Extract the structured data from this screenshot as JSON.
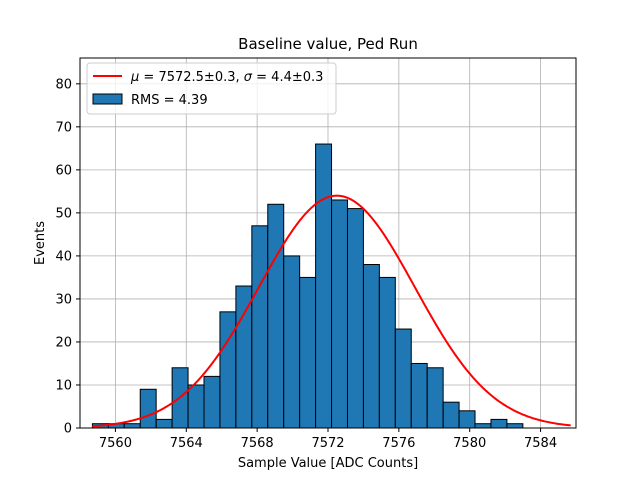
{
  "chart_data": {
    "type": "bar",
    "title": "Baseline value, Ped Run",
    "xlabel": "Sample Value [ADC Counts]",
    "ylabel": "Events",
    "xlim": [
      7558,
      7586
    ],
    "ylim": [
      0,
      86
    ],
    "xticks": [
      7560,
      7564,
      7568,
      7572,
      7576,
      7580,
      7584
    ],
    "yticks": [
      0,
      10,
      20,
      30,
      40,
      50,
      60,
      70,
      80
    ],
    "grid": true,
    "legend_position": "top-left",
    "bin_width": 0.9,
    "bin_starts": [
      7558.7,
      7559.6,
      7560.5,
      7561.4,
      7562.3,
      7563.2,
      7564.1,
      7565.0,
      7565.9,
      7566.8,
      7567.7,
      7568.6,
      7569.5,
      7570.4,
      7571.3,
      7572.2,
      7573.1,
      7574.0,
      7574.9,
      7575.8,
      7576.7,
      7577.6,
      7578.5,
      7579.4,
      7580.3,
      7581.2,
      7582.1,
      7583.0,
      7583.9,
      7584.8
    ],
    "counts": [
      1,
      1,
      1,
      9,
      2,
      14,
      10,
      12,
      27,
      33,
      47,
      52,
      40,
      35,
      66,
      53,
      51,
      38,
      35,
      23,
      15,
      14,
      6,
      4,
      1,
      2,
      1,
      0,
      0,
      0
    ],
    "series": [
      {
        "name": "RMS = 4.39",
        "kind": "histogram",
        "color": "#1f77b4",
        "edgecolor": "#000000"
      },
      {
        "name_mu": "μ",
        "name_eq1": " = 7572.5±0.3, ",
        "name_sigma": "σ",
        "name_eq2": " = 4.4±0.3",
        "kind": "gaussian-fit",
        "color": "#ff0000",
        "mu": 7572.5,
        "sigma": 4.4,
        "amplitude": 54,
        "x_range": [
          7558.7,
          7585.7
        ]
      }
    ]
  }
}
